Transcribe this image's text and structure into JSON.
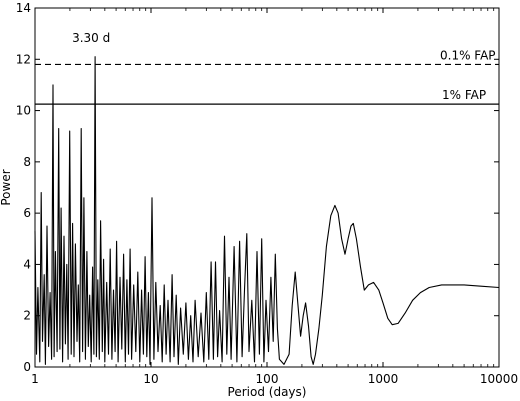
{
  "chart_data": {
    "type": "line",
    "title": "",
    "xlabel": "Period (days)",
    "ylabel": "Power",
    "xscale": "log",
    "xlim": [
      1,
      10000
    ],
    "ylim": [
      0,
      14
    ],
    "grid": false,
    "x_ticks": [
      {
        "value": 1,
        "label": "1"
      },
      {
        "value": 10,
        "label": "10"
      },
      {
        "value": 100,
        "label": "100"
      },
      {
        "value": 1000,
        "label": "1000"
      },
      {
        "value": 10000,
        "label": "10000"
      }
    ],
    "y_ticks": [
      {
        "value": 0,
        "label": "0"
      },
      {
        "value": 2,
        "label": "2"
      },
      {
        "value": 4,
        "label": "4"
      },
      {
        "value": 6,
        "label": "6"
      },
      {
        "value": 8,
        "label": "8"
      },
      {
        "value": 10,
        "label": "10"
      },
      {
        "value": 12,
        "label": "12"
      },
      {
        "value": 14,
        "label": "14"
      }
    ],
    "thresholds": [
      {
        "label": "0.1% FAP",
        "value": 11.8,
        "style": "dashed"
      },
      {
        "label": "1% FAP",
        "value": 10.25,
        "style": "solid"
      }
    ],
    "annotations": [
      {
        "text": "3.30 d",
        "x": 3.3,
        "y": 12.1
      }
    ],
    "series": [
      {
        "color": "#000000",
        "points": [
          [
            1.0,
            5.3
          ],
          [
            1.03,
            0.5
          ],
          [
            1.06,
            3.1
          ],
          [
            1.1,
            0.2
          ],
          [
            1.13,
            6.8
          ],
          [
            1.16,
            1.0
          ],
          [
            1.2,
            3.6
          ],
          [
            1.23,
            0.1
          ],
          [
            1.27,
            5.5
          ],
          [
            1.31,
            0.8
          ],
          [
            1.35,
            2.9
          ],
          [
            1.39,
            0.3
          ],
          [
            1.43,
            11.0
          ],
          [
            1.46,
            0.4
          ],
          [
            1.5,
            4.5
          ],
          [
            1.55,
            0.6
          ],
          [
            1.6,
            9.3
          ],
          [
            1.64,
            0.7
          ],
          [
            1.68,
            6.2
          ],
          [
            1.73,
            0.2
          ],
          [
            1.78,
            5.1
          ],
          [
            1.83,
            0.9
          ],
          [
            1.88,
            4.0
          ],
          [
            1.93,
            0.3
          ],
          [
            1.99,
            9.2
          ],
          [
            2.05,
            0.5
          ],
          [
            2.11,
            5.6
          ],
          [
            2.17,
            0.4
          ],
          [
            2.23,
            4.8
          ],
          [
            2.3,
            1.0
          ],
          [
            2.36,
            3.2
          ],
          [
            2.43,
            0.2
          ],
          [
            2.5,
            9.3
          ],
          [
            2.57,
            0.6
          ],
          [
            2.64,
            6.6
          ],
          [
            2.72,
            0.3
          ],
          [
            2.8,
            4.5
          ],
          [
            2.88,
            0.8
          ],
          [
            2.96,
            2.8
          ],
          [
            3.05,
            0.2
          ],
          [
            3.14,
            3.9
          ],
          [
            3.22,
            0.5
          ],
          [
            3.3,
            12.1
          ],
          [
            3.38,
            0.4
          ],
          [
            3.48,
            3.4
          ],
          [
            3.58,
            0.3
          ],
          [
            3.68,
            5.7
          ],
          [
            3.8,
            0.6
          ],
          [
            3.9,
            4.2
          ],
          [
            4.0,
            0.2
          ],
          [
            4.15,
            3.3
          ],
          [
            4.3,
            0.5
          ],
          [
            4.45,
            4.6
          ],
          [
            4.6,
            0.3
          ],
          [
            4.75,
            3.0
          ],
          [
            4.9,
            0.6
          ],
          [
            5.05,
            4.9
          ],
          [
            5.2,
            0.2
          ],
          [
            5.4,
            3.5
          ],
          [
            5.6,
            0.7
          ],
          [
            5.8,
            4.4
          ],
          [
            6.0,
            0.2
          ],
          [
            6.2,
            3.4
          ],
          [
            6.4,
            0.5
          ],
          [
            6.6,
            4.6
          ],
          [
            6.8,
            0.3
          ],
          [
            7.1,
            3.2
          ],
          [
            7.4,
            0.6
          ],
          [
            7.7,
            3.7
          ],
          [
            8.0,
            0.2
          ],
          [
            8.3,
            3.0
          ],
          [
            8.6,
            0.5
          ],
          [
            8.9,
            4.3
          ],
          [
            9.2,
            0.4
          ],
          [
            9.5,
            2.9
          ],
          [
            9.8,
            0.1
          ],
          [
            10.2,
            6.6
          ],
          [
            10.6,
            0.3
          ],
          [
            11.0,
            3.3
          ],
          [
            11.5,
            0.6
          ],
          [
            12.0,
            2.4
          ],
          [
            12.5,
            0.2
          ],
          [
            13.0,
            3.2
          ],
          [
            13.5,
            0.5
          ],
          [
            14.0,
            2.6
          ],
          [
            14.6,
            0.2
          ],
          [
            15.2,
            3.6
          ],
          [
            15.8,
            0.4
          ],
          [
            16.5,
            2.8
          ],
          [
            17.2,
            0.1
          ],
          [
            18.0,
            2.3
          ],
          [
            19.0,
            0.5
          ],
          [
            20.0,
            2.5
          ],
          [
            21.0,
            0.3
          ],
          [
            22.0,
            2.0
          ],
          [
            23.0,
            0.2
          ],
          [
            24.0,
            2.6
          ],
          [
            25.5,
            0.4
          ],
          [
            27.0,
            2.1
          ],
          [
            28.5,
            0.2
          ],
          [
            30.0,
            2.9
          ],
          [
            31.5,
            0.3
          ],
          [
            33.0,
            4.1
          ],
          [
            34.5,
            0.3
          ],
          [
            36.0,
            4.1
          ],
          [
            37.5,
            0.4
          ],
          [
            39.0,
            2.2
          ],
          [
            41.0,
            0.2
          ],
          [
            43.0,
            5.1
          ],
          [
            45.0,
            0.5
          ],
          [
            47.0,
            3.5
          ],
          [
            49.0,
            0.3
          ],
          [
            52.0,
            4.7
          ],
          [
            55.0,
            0.2
          ],
          [
            58.0,
            4.9
          ],
          [
            61.0,
            0.4
          ],
          [
            64.0,
            3.0
          ],
          [
            67.0,
            5.2
          ],
          [
            70.0,
            0.6
          ],
          [
            74.0,
            2.6
          ],
          [
            78.0,
            0.2
          ],
          [
            82.0,
            4.5
          ],
          [
            86.0,
            0.5
          ],
          [
            90.0,
            5.0
          ],
          [
            94.0,
            0.2
          ],
          [
            98.0,
            2.6
          ],
          [
            103.0,
            0.6
          ],
          [
            108.0,
            3.5
          ],
          [
            113.0,
            1.0
          ],
          [
            118.0,
            4.4
          ],
          [
            123.0,
            1.5
          ],
          [
            128.0,
            0.3
          ],
          [
            140.0,
            0.1
          ],
          [
            155.0,
            0.5
          ],
          [
            165.0,
            2.4
          ],
          [
            175.0,
            3.7
          ],
          [
            185.0,
            2.4
          ],
          [
            195.0,
            1.2
          ],
          [
            205.0,
            2.0
          ],
          [
            215.0,
            2.5
          ],
          [
            228.0,
            1.6
          ],
          [
            240.0,
            0.4
          ],
          [
            250.0,
            0.1
          ],
          [
            262.0,
            0.5
          ],
          [
            280.0,
            1.5
          ],
          [
            300.0,
            2.8
          ],
          [
            325.0,
            4.7
          ],
          [
            355.0,
            5.9
          ],
          [
            385.0,
            6.3
          ],
          [
            410.0,
            6.0
          ],
          [
            440.0,
            5.0
          ],
          [
            470.0,
            4.4
          ],
          [
            500.0,
            5.0
          ],
          [
            530.0,
            5.5
          ],
          [
            555.0,
            5.6
          ],
          [
            590.0,
            5.0
          ],
          [
            640.0,
            3.9
          ],
          [
            690.0,
            3.0
          ],
          [
            750.0,
            3.2
          ],
          [
            830.0,
            3.3
          ],
          [
            920.0,
            3.0
          ],
          [
            1000.0,
            2.5
          ],
          [
            1100.0,
            1.9
          ],
          [
            1200.0,
            1.65
          ],
          [
            1350.0,
            1.7
          ],
          [
            1550.0,
            2.1
          ],
          [
            1800.0,
            2.6
          ],
          [
            2100.0,
            2.9
          ],
          [
            2500.0,
            3.1
          ],
          [
            3200.0,
            3.2
          ],
          [
            5000.0,
            3.2
          ],
          [
            7000.0,
            3.15
          ],
          [
            10000.0,
            3.1
          ]
        ]
      }
    ]
  }
}
